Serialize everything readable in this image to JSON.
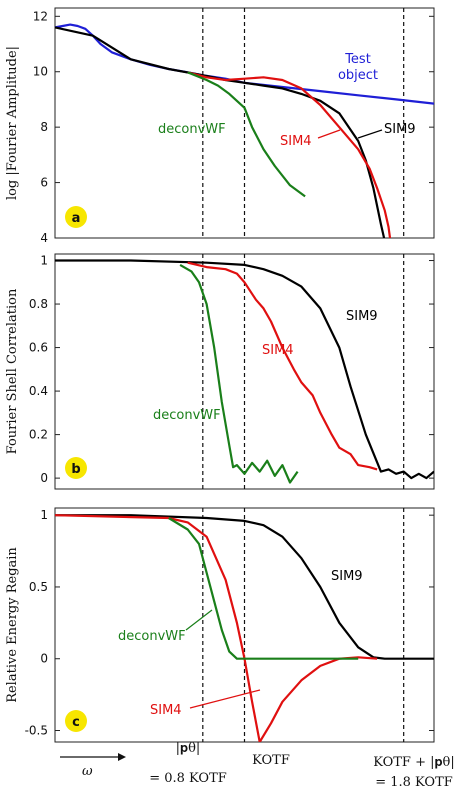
{
  "chart_data": [
    {
      "panel": "a",
      "type": "line",
      "ylabel": "log |Fourier Amplitude|",
      "ylim": [
        4,
        12.3
      ],
      "yticks": [
        4,
        6,
        8,
        10,
        12
      ],
      "xlim": [
        0,
        1
      ],
      "grid": false,
      "series": [
        {
          "name": "Test object",
          "color": "#1f1fd6",
          "x": [
            0.0,
            0.02,
            0.04,
            0.06,
            0.08,
            0.1,
            0.12,
            0.15,
            0.2,
            0.25,
            0.3,
            0.35,
            0.4,
            0.45,
            0.5,
            0.6,
            0.7,
            0.8,
            0.9,
            1.0
          ],
          "y": [
            11.6,
            11.65,
            11.7,
            11.65,
            11.55,
            11.3,
            11.0,
            10.7,
            10.45,
            10.25,
            10.1,
            9.98,
            9.85,
            9.75,
            9.6,
            9.45,
            9.3,
            9.15,
            9.0,
            8.85
          ]
        },
        {
          "name": "SIM9",
          "color": "#000000",
          "x": [
            0.0,
            0.1,
            0.2,
            0.3,
            0.4,
            0.45,
            0.5,
            0.55,
            0.6,
            0.65,
            0.7,
            0.75,
            0.8,
            0.82,
            0.84,
            0.86,
            0.87
          ],
          "y": [
            11.6,
            11.3,
            10.45,
            10.1,
            9.85,
            9.7,
            9.6,
            9.5,
            9.4,
            9.2,
            8.95,
            8.5,
            7.5,
            6.8,
            5.8,
            4.5,
            3.9
          ]
        },
        {
          "name": "SIM4",
          "color": "#e01010",
          "x": [
            0.35,
            0.4,
            0.45,
            0.5,
            0.55,
            0.6,
            0.65,
            0.7,
            0.75,
            0.8,
            0.83,
            0.85,
            0.87,
            0.88,
            0.885
          ],
          "y": [
            9.98,
            9.8,
            9.7,
            9.75,
            9.8,
            9.7,
            9.4,
            8.8,
            8.0,
            7.2,
            6.5,
            5.8,
            5.0,
            4.4,
            3.9
          ]
        },
        {
          "name": "deconvWF",
          "color": "#1a7f1a",
          "x": [
            0.35,
            0.4,
            0.43,
            0.46,
            0.5,
            0.52,
            0.55,
            0.58,
            0.62,
            0.66
          ],
          "y": [
            9.98,
            9.7,
            9.5,
            9.2,
            8.7,
            8.0,
            7.2,
            6.6,
            5.9,
            5.5
          ]
        }
      ],
      "annotations": [
        "Test object",
        "SIM4",
        "SIM9",
        "deconvWF"
      ]
    },
    {
      "panel": "b",
      "type": "line",
      "ylabel": "Fourier Shell Correlation",
      "ylim": [
        -0.05,
        1.03
      ],
      "yticks": [
        0,
        0.2,
        0.4,
        0.6,
        0.8,
        1
      ],
      "ytick_labels": [
        "0",
        "0.2",
        "0.4",
        "0.6",
        "0.8",
        "1"
      ],
      "xlim": [
        0,
        1
      ],
      "grid": false,
      "series": [
        {
          "name": "SIM9",
          "color": "#000000",
          "x": [
            0.0,
            0.2,
            0.4,
            0.5,
            0.55,
            0.6,
            0.65,
            0.7,
            0.75,
            0.78,
            0.82,
            0.86,
            0.88,
            0.9,
            0.92,
            0.94,
            0.96,
            0.98,
            1.0
          ],
          "y": [
            1.0,
            1.0,
            0.99,
            0.98,
            0.96,
            0.93,
            0.88,
            0.78,
            0.6,
            0.42,
            0.2,
            0.03,
            0.04,
            0.02,
            0.03,
            0.0,
            0.02,
            0.0,
            0.03
          ]
        },
        {
          "name": "SIM4",
          "color": "#e01010",
          "x": [
            0.35,
            0.4,
            0.45,
            0.48,
            0.5,
            0.53,
            0.55,
            0.57,
            0.6,
            0.63,
            0.65,
            0.68,
            0.7,
            0.73,
            0.75,
            0.78,
            0.8,
            0.83,
            0.85
          ],
          "y": [
            0.99,
            0.97,
            0.96,
            0.94,
            0.9,
            0.82,
            0.78,
            0.72,
            0.6,
            0.5,
            0.44,
            0.38,
            0.3,
            0.2,
            0.14,
            0.11,
            0.06,
            0.05,
            0.04
          ]
        },
        {
          "name": "deconvWF",
          "color": "#1a7f1a",
          "x": [
            0.33,
            0.36,
            0.38,
            0.4,
            0.42,
            0.44,
            0.46,
            0.47,
            0.48,
            0.5,
            0.52,
            0.54,
            0.56,
            0.58,
            0.6,
            0.62,
            0.64
          ],
          "y": [
            0.98,
            0.95,
            0.9,
            0.8,
            0.6,
            0.35,
            0.15,
            0.05,
            0.06,
            0.02,
            0.07,
            0.03,
            0.08,
            0.01,
            0.06,
            -0.02,
            0.03
          ]
        }
      ],
      "annotations": [
        "SIM9",
        "SIM4",
        "deconvWF"
      ]
    },
    {
      "panel": "c",
      "type": "line",
      "ylabel": "Relative Energy Regain",
      "ylim": [
        -0.58,
        1.05
      ],
      "yticks": [
        -0.5,
        0,
        0.5,
        1
      ],
      "ytick_labels": [
        "-0.5",
        "0",
        "0.5",
        "1"
      ],
      "xlim": [
        0,
        1
      ],
      "grid": false,
      "series": [
        {
          "name": "SIM9",
          "color": "#000000",
          "x": [
            0.0,
            0.2,
            0.4,
            0.5,
            0.55,
            0.6,
            0.65,
            0.7,
            0.75,
            0.8,
            0.84,
            0.87,
            0.9,
            1.0
          ],
          "y": [
            1.0,
            1.0,
            0.98,
            0.96,
            0.93,
            0.85,
            0.7,
            0.5,
            0.25,
            0.08,
            0.01,
            0.0,
            0.0,
            0.0
          ]
        },
        {
          "name": "SIM4",
          "color": "#e01010",
          "x": [
            0.0,
            0.3,
            0.35,
            0.4,
            0.45,
            0.48,
            0.5,
            0.52,
            0.54,
            0.57,
            0.6,
            0.65,
            0.7,
            0.75,
            0.8,
            0.85
          ],
          "y": [
            1.0,
            0.98,
            0.95,
            0.85,
            0.55,
            0.25,
            0.0,
            -0.3,
            -0.58,
            -0.45,
            -0.3,
            -0.15,
            -0.05,
            0.0,
            0.01,
            0.0
          ]
        },
        {
          "name": "deconvWF",
          "color": "#1a7f1a",
          "x": [
            0.3,
            0.35,
            0.38,
            0.4,
            0.42,
            0.44,
            0.46,
            0.48,
            0.5,
            0.6,
            0.8
          ],
          "y": [
            0.98,
            0.9,
            0.8,
            0.6,
            0.4,
            0.2,
            0.05,
            0.0,
            0.0,
            0.0,
            0.0
          ]
        }
      ],
      "annotations": [
        "SIM9",
        "deconvWF",
        "SIM4"
      ]
    }
  ],
  "bottom_labels": {
    "omega": "ω",
    "p_theta_line1": "|𝐩θ|",
    "p_theta_line2": "= 0.8 KOTF",
    "kotf": "KOTF",
    "kotf_plus_line1": "KOTF + |𝐩θ|",
    "kotf_plus_line2": "= 1.8 KOTF"
  },
  "badges": {
    "a": "a",
    "b": "b",
    "c": "c"
  },
  "colors": {
    "sim9": "#000000",
    "sim4": "#e01010",
    "deconvWF": "#1a7f1a",
    "test_object": "#1f1fd6",
    "badge_fill": "#f7e600"
  }
}
